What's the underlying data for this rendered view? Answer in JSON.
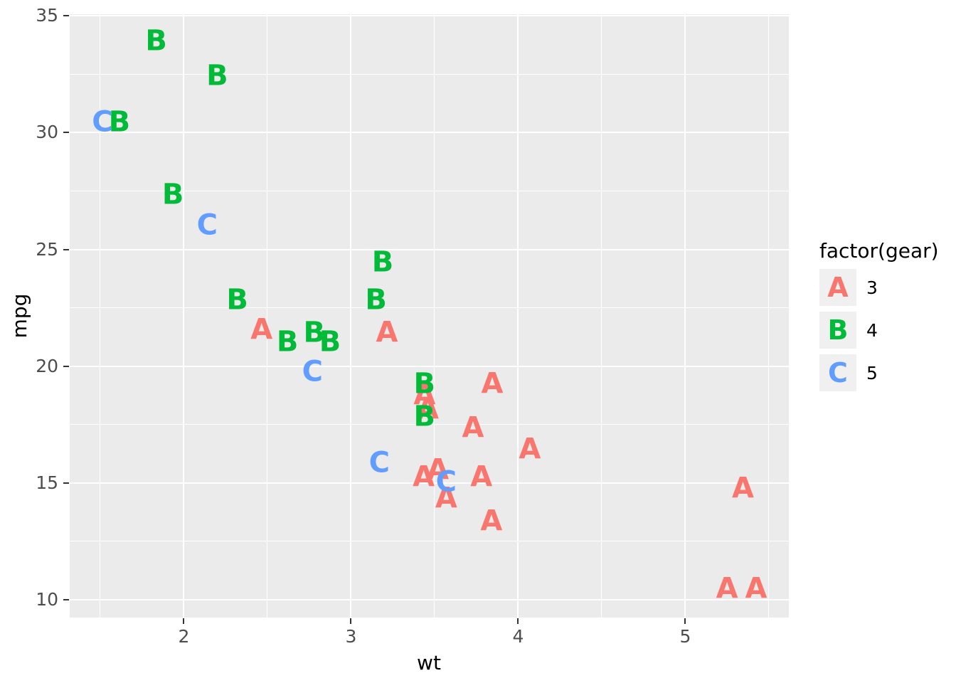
{
  "chart_data": {
    "type": "scatter",
    "title": "",
    "xlabel": "wt",
    "ylabel": "mpg",
    "xlim": [
      1.3174,
      5.6196
    ],
    "ylim": [
      9.225,
      35.075
    ],
    "x_major_ticks": [
      2,
      3,
      4,
      5
    ],
    "x_minor_ticks": [
      1.5,
      2.5,
      3.5,
      4.5,
      5.5
    ],
    "y_major_ticks": [
      10,
      15,
      20,
      25,
      30,
      35
    ],
    "y_minor_ticks": [
      12.5,
      17.5,
      22.5,
      27.5,
      32.5
    ],
    "panel_bg": "#EBEBEB",
    "grid_color": "#FFFFFF",
    "tick_label_color": "#4D4D4D",
    "legend": {
      "title": "factor(gear)",
      "position": "right",
      "entries": [
        {
          "label": "3",
          "letter": "A",
          "color": "#F8766D"
        },
        {
          "label": "4",
          "letter": "B",
          "color": "#00BA38"
        },
        {
          "label": "5",
          "letter": "C",
          "color": "#619CFF"
        }
      ]
    },
    "series": [
      {
        "name": "3",
        "letter": "A",
        "color": "#F8766D",
        "points": [
          [
            3.215,
            21.4
          ],
          [
            3.44,
            18.7
          ],
          [
            3.46,
            18.1
          ],
          [
            3.57,
            14.3
          ],
          [
            3.73,
            17.3
          ],
          [
            4.07,
            16.4
          ],
          [
            3.78,
            15.2
          ],
          [
            5.25,
            10.4
          ],
          [
            5.424,
            10.4
          ],
          [
            5.345,
            14.7
          ],
          [
            2.465,
            21.5
          ],
          [
            3.52,
            15.5
          ],
          [
            3.435,
            15.2
          ],
          [
            3.84,
            13.3
          ],
          [
            3.845,
            19.2
          ]
        ]
      },
      {
        "name": "4",
        "letter": "B",
        "color": "#00BA38",
        "points": [
          [
            2.62,
            21.0
          ],
          [
            2.875,
            21.0
          ],
          [
            2.32,
            22.8
          ],
          [
            3.19,
            24.4
          ],
          [
            3.15,
            22.8
          ],
          [
            3.44,
            19.2
          ],
          [
            3.44,
            17.8
          ],
          [
            2.2,
            32.4
          ],
          [
            1.615,
            30.4
          ],
          [
            1.835,
            33.9
          ],
          [
            1.935,
            27.3
          ],
          [
            2.78,
            21.4
          ]
        ]
      },
      {
        "name": "5",
        "letter": "C",
        "color": "#619CFF",
        "points": [
          [
            2.14,
            26.0
          ],
          [
            1.513,
            30.4
          ],
          [
            3.17,
            15.8
          ],
          [
            2.77,
            19.7
          ],
          [
            3.57,
            15.0
          ]
        ]
      }
    ]
  }
}
